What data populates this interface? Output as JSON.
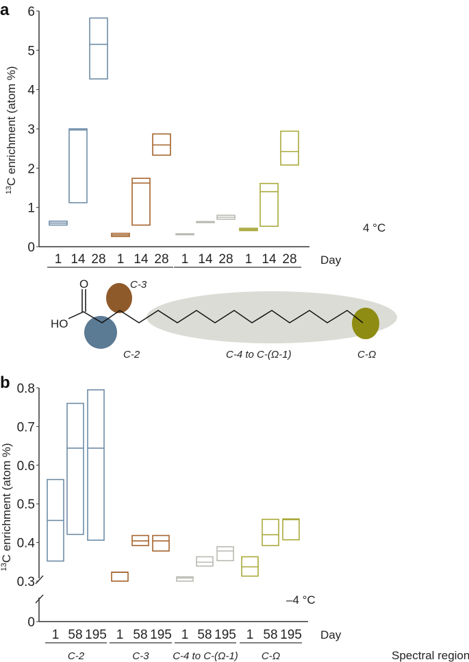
{
  "colors": {
    "C-2": "#6e8ca6",
    "C-3": "#a4622a",
    "C-4 to C-(Ω-1)": "#b9b9b2",
    "C-Ω": "#a9a83a",
    "axis": "#333333"
  },
  "diagram": {
    "o_label": "O",
    "ho_label": "HO",
    "c2": "C-2",
    "c3": "C-3",
    "c4": "C-4 to C-(Ω-1)",
    "comega": "C-Ω",
    "colors": {
      "c2": "#5b7a94",
      "c3": "#8f5a2a",
      "c4": "#dcdcd6",
      "comega": "#8e8c12"
    }
  },
  "chart_data": [
    {
      "panel": "a",
      "type": "box",
      "ylabel": "13C enrichment (atom %)",
      "ylabel_sup": "13",
      "ylabel_rest": "C enrichment (atom %)",
      "ylim": [
        0,
        6
      ],
      "yticks": [
        "0",
        "1",
        "2",
        "3",
        "4",
        "5",
        "6"
      ],
      "annotation": "4 °C",
      "xlabel": "Day",
      "groups": [
        {
          "region": "C-2",
          "days": [
            "1",
            "14",
            "28"
          ],
          "boxes": [
            [
              0.55,
              0.6,
              0.65
            ],
            [
              1.12,
              2.97,
              3.0
            ],
            [
              4.27,
              5.15,
              5.82
            ]
          ]
        },
        {
          "region": "C-3",
          "days": [
            "1",
            "14",
            "28"
          ],
          "boxes": [
            [
              0.26,
              0.3,
              0.34
            ],
            [
              0.55,
              1.62,
              1.74
            ],
            [
              2.33,
              2.59,
              2.87
            ]
          ]
        },
        {
          "region": "C-4 to C-(Ω-1)",
          "days": [
            "1",
            "14",
            "28"
          ],
          "boxes": [
            [
              0.31,
              0.32,
              0.33
            ],
            [
              0.62,
              0.63,
              0.64
            ],
            [
              0.7,
              0.75,
              0.8
            ]
          ]
        },
        {
          "region": "C-Ω",
          "days": [
            "1",
            "14",
            "28"
          ],
          "boxes": [
            [
              0.41,
              0.44,
              0.47
            ],
            [
              0.52,
              1.4,
              1.61
            ],
            [
              2.08,
              2.42,
              2.94
            ]
          ]
        }
      ]
    },
    {
      "panel": "b",
      "type": "box",
      "ylabel": "13C enrichment (atom %)",
      "ylabel_sup": "13",
      "ylabel_rest": "C enrichment (atom %)",
      "ylim": [
        0.3,
        0.8
      ],
      "axis_break": [
        0,
        0.3
      ],
      "yticks": [
        "0",
        "0.3",
        "0.4",
        "0.5",
        "0.6",
        "0.7",
        "0.8"
      ],
      "annotation": "–4 °C",
      "xlabel": "Day",
      "xlabel2": "Spectral region",
      "groups": [
        {
          "region": "C-2",
          "days": [
            "1",
            "58",
            "195"
          ],
          "boxes": [
            [
              0.352,
              0.457,
              0.563
            ],
            [
              0.421,
              0.644,
              0.76
            ],
            [
              0.406,
              0.644,
              0.795
            ]
          ]
        },
        {
          "region": "C-3",
          "days": [
            "1",
            "58",
            "195"
          ],
          "boxes": [
            [
              0.3,
              0.323,
              0.323
            ],
            [
              0.392,
              0.404,
              0.418
            ],
            [
              0.378,
              0.404,
              0.418
            ]
          ]
        },
        {
          "region": "C-4 to C-(Ω-1)",
          "days": [
            "1",
            "58",
            "195"
          ],
          "boxes": [
            [
              0.3,
              0.308,
              0.311
            ],
            [
              0.339,
              0.349,
              0.363
            ],
            [
              0.353,
              0.378,
              0.389
            ]
          ]
        },
        {
          "region": "C-Ω",
          "days": [
            "1",
            "58",
            "195"
          ],
          "boxes": [
            [
              0.313,
              0.337,
              0.363
            ],
            [
              0.392,
              0.42,
              0.46
            ],
            [
              0.407,
              0.459,
              0.461
            ]
          ]
        }
      ]
    }
  ]
}
